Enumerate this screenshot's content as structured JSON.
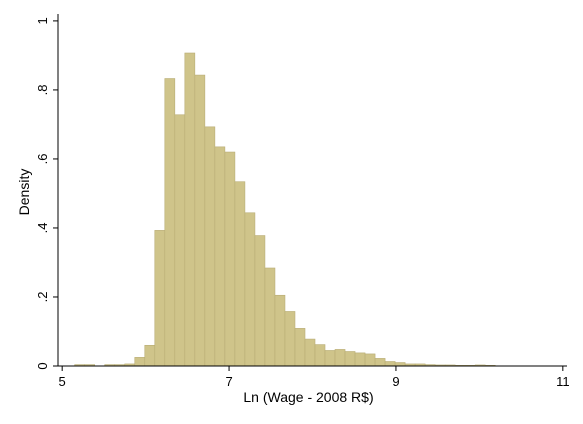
{
  "chart_data": {
    "type": "histogram",
    "xlabel": "Ln (Wage - 2008 R$)",
    "ylabel": "Density",
    "xlim": [
      4.95,
      11.05
    ],
    "ylim": [
      0,
      1.02
    ],
    "x_ticks": [
      5,
      7,
      9,
      11
    ],
    "x_tick_labels": [
      "5",
      "7",
      "9",
      "11"
    ],
    "y_ticks": [
      0,
      0.2,
      0.4,
      0.6,
      0.8,
      1
    ],
    "y_tick_labels": [
      "0",
      ".2",
      ".4",
      ".6",
      ".8",
      "1"
    ],
    "grid": false,
    "legend": "none",
    "bar_color": "#cfc48a",
    "bar_edge_color": "#b8ac74",
    "bin_width": 0.12,
    "bin_starts": [
      5.15,
      5.27,
      5.51,
      5.63,
      5.75,
      5.87,
      5.99,
      6.11,
      6.23,
      6.35,
      6.47,
      6.59,
      6.71,
      6.83,
      6.95,
      7.07,
      7.19,
      7.31,
      7.43,
      7.55,
      7.67,
      7.79,
      7.91,
      8.03,
      8.15,
      8.27,
      8.39,
      8.51,
      8.63,
      8.75,
      8.87,
      8.99,
      9.11,
      9.23,
      9.35,
      9.47,
      9.59,
      9.71,
      9.83,
      9.95,
      10.07
    ],
    "values": [
      0.004,
      0.004,
      0.004,
      0.004,
      0.006,
      0.025,
      0.06,
      0.393,
      0.833,
      0.728,
      0.907,
      0.843,
      0.693,
      0.635,
      0.62,
      0.534,
      0.444,
      0.378,
      0.284,
      0.205,
      0.158,
      0.109,
      0.078,
      0.062,
      0.045,
      0.048,
      0.042,
      0.038,
      0.035,
      0.022,
      0.013,
      0.01,
      0.006,
      0.006,
      0.004,
      0.003,
      0.003,
      0.002,
      0.002,
      0.003,
      0.002
    ]
  }
}
